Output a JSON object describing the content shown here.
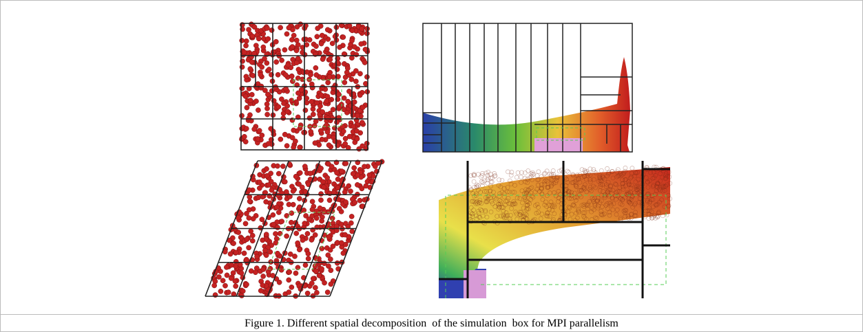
{
  "figure": {
    "caption": "Figure 1. Different spatial decomposition  of the simulation  box for MPI parallelism"
  }
}
